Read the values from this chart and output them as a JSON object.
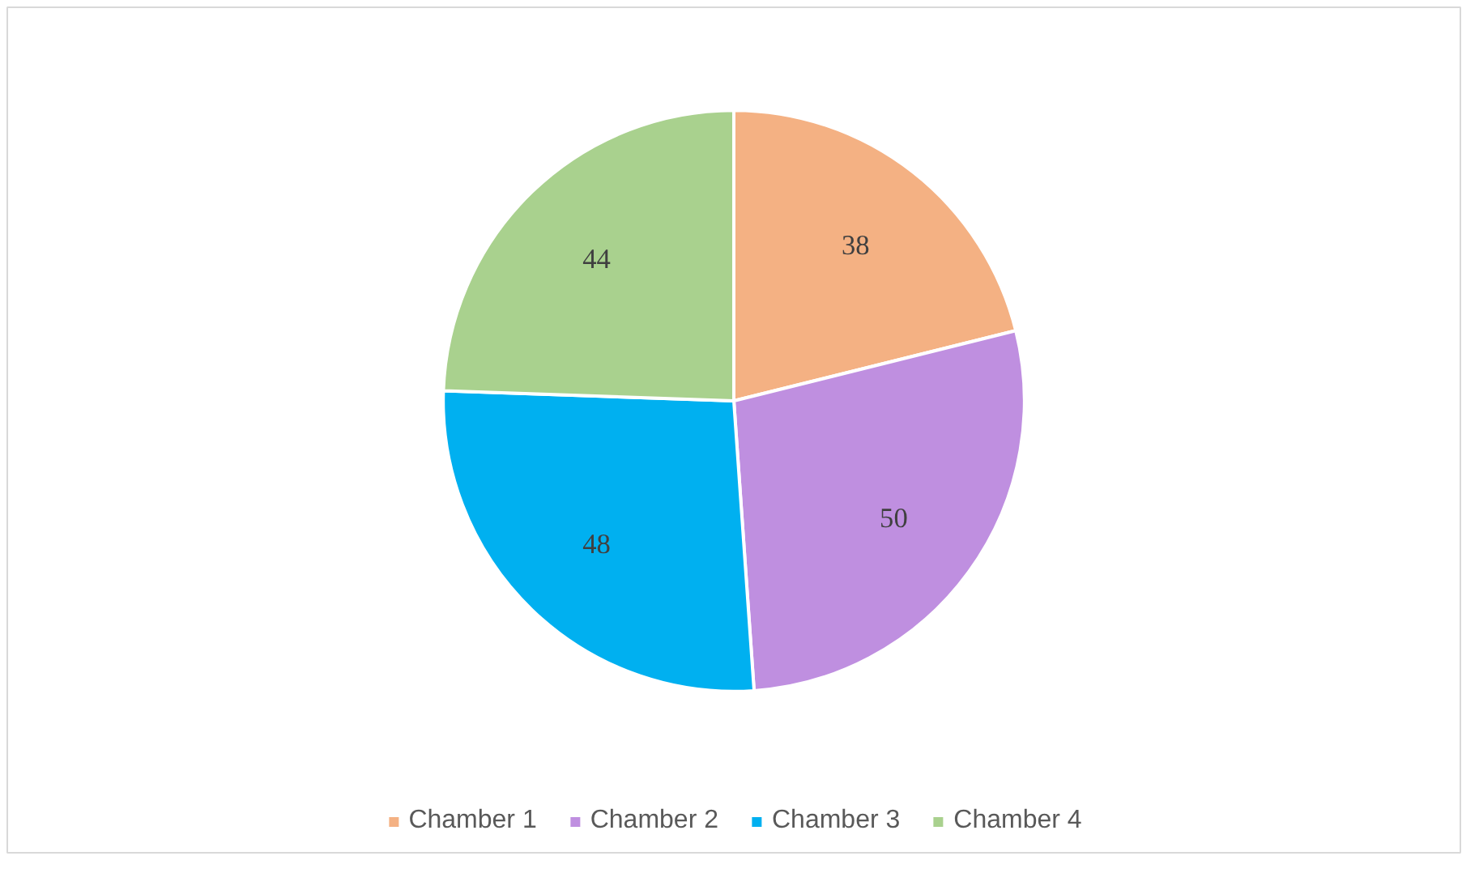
{
  "chart_data": {
    "type": "pie",
    "categories": [
      "Chamber 1",
      "Chamber 2",
      "Chamber 3",
      "Chamber 4"
    ],
    "values": [
      38,
      50,
      48,
      44
    ],
    "colors": [
      "#f4b183",
      "#bf8fe0",
      "#00b0f0",
      "#a9d18e"
    ],
    "data_labels": true,
    "legend": "bottom"
  }
}
